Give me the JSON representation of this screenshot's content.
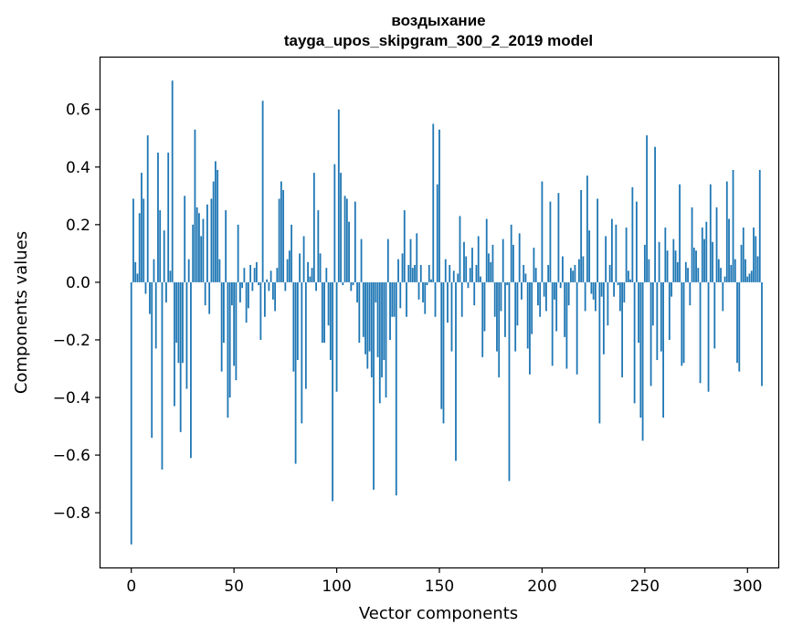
{
  "chart_data": {
    "type": "bar",
    "title_line1": "воздыхание",
    "title_line2": "tayga_upos_skipgram_300_2_2019 model",
    "xlabel": "Vector components",
    "ylabel": "Components values",
    "xlim": [
      -15,
      315
    ],
    "ylim": [
      -0.99,
      0.78
    ],
    "xticks": [
      0,
      50,
      100,
      150,
      200,
      250,
      300
    ],
    "xtick_labels": [
      "0",
      "50",
      "100",
      "150",
      "200",
      "250",
      "300"
    ],
    "yticks": [
      -0.8,
      -0.6,
      -0.4,
      -0.2,
      0.0,
      0.2,
      0.4,
      0.6
    ],
    "ytick_labels": [
      "−0.8",
      "−0.6",
      "−0.4",
      "−0.2",
      "0.0",
      "0.2",
      "0.4",
      "0.6"
    ],
    "bar_color": "#1f77b4",
    "values": [
      -0.91,
      0.29,
      0.07,
      0.03,
      0.24,
      0.38,
      0.29,
      -0.04,
      0.51,
      -0.11,
      -0.54,
      0.08,
      -0.23,
      0.45,
      0.25,
      -0.65,
      0.18,
      -0.07,
      0.45,
      0.04,
      0.7,
      -0.43,
      -0.21,
      -0.28,
      -0.52,
      -0.28,
      0.3,
      -0.37,
      0.08,
      -0.61,
      0.2,
      0.53,
      0.26,
      0.24,
      0.16,
      0.22,
      -0.08,
      0.27,
      -0.11,
      0.29,
      0.35,
      0.42,
      0.39,
      0.08,
      -0.31,
      -0.21,
      0.25,
      -0.47,
      -0.4,
      -0.08,
      -0.29,
      -0.34,
      0.2,
      -0.07,
      -0.02,
      0.05,
      -0.14,
      -0.09,
      0.06,
      -0.03,
      0.05,
      0.07,
      -0.01,
      -0.2,
      0.63,
      -0.12,
      0.01,
      -0.03,
      0.04,
      -0.06,
      -0.1,
      0.05,
      0.29,
      0.35,
      0.32,
      -0.03,
      0.08,
      0.11,
      0.2,
      -0.31,
      -0.63,
      -0.27,
      0.1,
      -0.49,
      0.16,
      -0.37,
      0.07,
      0.02,
      0.05,
      0.38,
      -0.03,
      0.25,
      0.1,
      -0.21,
      -0.21,
      0.05,
      -0.15,
      -0.27,
      -0.76,
      0.41,
      -0.38,
      0.6,
      0.38,
      -0.01,
      0.3,
      0.29,
      0.21,
      -0.03,
      -0.01,
      0.28,
      -0.07,
      -0.21,
      0.15,
      -0.19,
      -0.25,
      -0.3,
      -0.24,
      -0.33,
      -0.72,
      -0.07,
      -0.26,
      -0.42,
      -0.33,
      -0.27,
      -0.4,
      0.15,
      -0.2,
      -0.12,
      -0.12,
      -0.74,
      0.08,
      -0.09,
      0.1,
      0.25,
      -0.12,
      0.06,
      0.15,
      0.05,
      0.06,
      0.17,
      -0.06,
      0.06,
      -0.07,
      -0.11,
      -0.01,
      0.06,
      0.01,
      0.55,
      -0.12,
      0.34,
      0.53,
      -0.44,
      -0.49,
      0.08,
      -0.14,
      0.06,
      -0.24,
      0.04,
      -0.62,
      0.03,
      0.23,
      -0.12,
      0.14,
      0.09,
      -0.02,
      0.05,
      0.12,
      -0.08,
      0.06,
      0.16,
      0.02,
      -0.26,
      -0.17,
      0.22,
      0.1,
      0.07,
      0.13,
      -0.12,
      -0.24,
      -0.33,
      -0.1,
      0.15,
      -0.19,
      -0.01,
      -0.69,
      0.2,
      0.13,
      -0.24,
      -0.15,
      0.17,
      -0.06,
      0.06,
      0.03,
      -0.23,
      -0.32,
      -0.18,
      0.12,
      0.05,
      -0.08,
      -0.12,
      0.35,
      -0.05,
      -0.1,
      0.06,
      0.28,
      -0.29,
      -0.06,
      -0.17,
      0.31,
      -0.02,
      0.09,
      -0.19,
      -0.3,
      -0.08,
      0.05,
      0.04,
      0.06,
      -0.32,
      0.08,
      0.32,
      0.09,
      -0.1,
      0.37,
      0.18,
      -0.04,
      -0.06,
      -0.1,
      0.29,
      -0.49,
      -0.05,
      -0.25,
      0.16,
      -0.15,
      0.06,
      0.22,
      -0.05,
      0.2,
      -0.01,
      -0.1,
      -0.33,
      -0.07,
      0.19,
      0.04,
      0.01,
      0.33,
      -0.42,
      0.28,
      -0.21,
      -0.47,
      -0.55,
      0.13,
      0.51,
      0.08,
      -0.36,
      -0.15,
      0.47,
      -0.27,
      0.14,
      -0.24,
      -0.47,
      0.19,
      0.11,
      -0.2,
      -0.05,
      0.15,
      0.11,
      0.07,
      0.34,
      -0.29,
      -0.28,
      0.07,
      0.05,
      -0.08,
      0.26,
      0.12,
      0.11,
      0.05,
      -0.35,
      0.19,
      0.15,
      0.21,
      -0.38,
      0.34,
      0.14,
      -0.23,
      0.26,
      0.08,
      0.05,
      -0.1,
      0.02,
      0.35,
      0.22,
      0.06,
      0.39,
      0.08,
      -0.28,
      -0.31,
      0.13,
      0.19,
      0.08,
      0.02,
      0.03,
      0.04,
      0.19,
      0.16,
      0.09,
      0.39,
      -0.36
    ]
  }
}
